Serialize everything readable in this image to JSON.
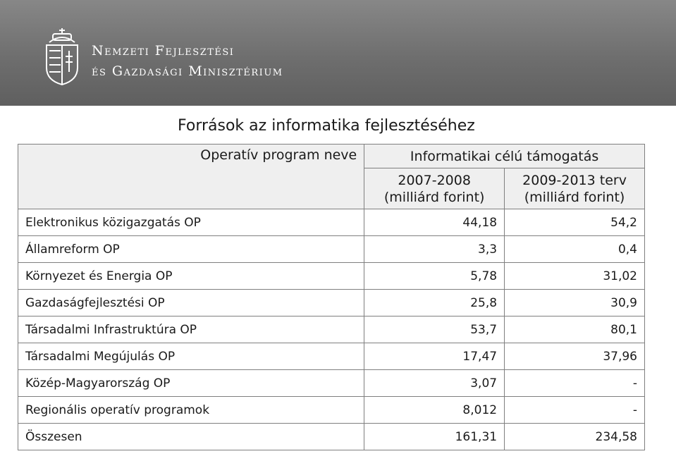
{
  "header": {
    "org_line1": "Nemzeti Fejlesztési",
    "org_line2": "és Gazdasági Minisztérium"
  },
  "title": "Források az informatika fejlesztéséhez",
  "table": {
    "col_name_header": "Operatív program neve",
    "group_header": "Informatikai célú támogatás",
    "col_a_line1": "2007-2008",
    "col_a_line2": "(milliárd forint)",
    "col_b_line1": "2009-2013 terv",
    "col_b_line2": "(milliárd forint)",
    "rows": [
      {
        "name": "Elektronikus közigazgatás OP",
        "a": "44,18",
        "b": "54,2"
      },
      {
        "name": "Államreform OP",
        "a": "3,3",
        "b": "0,4"
      },
      {
        "name": "Környezet és Energia OP",
        "a": "5,78",
        "b": "31,02"
      },
      {
        "name": "Gazdaságfejlesztési OP",
        "a": "25,8",
        "b": "30,9"
      },
      {
        "name": "Társadalmi Infrastruktúra OP",
        "a": "53,7",
        "b": "80,1"
      },
      {
        "name": "Társadalmi Megújulás OP",
        "a": "17,47",
        "b": "37,96"
      },
      {
        "name": "Közép-Magyarország OP",
        "a": "3,07",
        "b": "-"
      },
      {
        "name": "Regionális operatív programok",
        "a": "8,012",
        "b": "-"
      },
      {
        "name": "Összesen",
        "a": "161,31",
        "b": "234,58"
      }
    ]
  }
}
